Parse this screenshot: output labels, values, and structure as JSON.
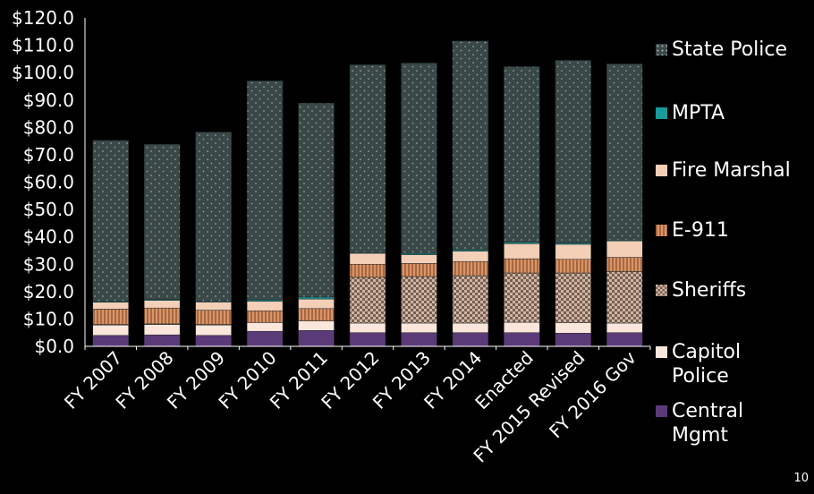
{
  "chart_data": {
    "type": "bar",
    "stacked": true,
    "categories": [
      "FY 2007",
      "FY 2008",
      "FY 2009",
      "FY 2010",
      "FY 2011",
      "FY 2012",
      "FY 2013",
      "FY 2014",
      "Enacted",
      "FY 2015 Revised",
      "FY 2016 Gov"
    ],
    "yticks": [
      "$0.0",
      "$10.0",
      "$20.0",
      "$30.0",
      "$40.0",
      "$50.0",
      "$60.0",
      "$70.0",
      "$80.0",
      "$90.0",
      "$100.0",
      "$110.0",
      "$120.0"
    ],
    "ylim": [
      0,
      120
    ],
    "series": [
      {
        "name": "Central Mgmt",
        "color": "#5b3a78",
        "pattern": "solid",
        "values": [
          4.0,
          4.2,
          4.0,
          5.5,
          5.8,
          5.0,
          5.0,
          5.0,
          5.0,
          4.8,
          5.0
        ]
      },
      {
        "name": "Capitol Police",
        "color": "#fbe6dc",
        "pattern": "solid",
        "values": [
          3.8,
          3.8,
          3.8,
          3.2,
          3.5,
          3.5,
          3.5,
          3.5,
          3.8,
          3.8,
          3.5
        ]
      },
      {
        "name": "Sheriffs",
        "color": "#b89a88",
        "pattern": "checker",
        "values": [
          0.2,
          0.2,
          0.2,
          0.0,
          0.0,
          16.7,
          17.0,
          17.3,
          18.0,
          18.2,
          18.8
        ]
      },
      {
        "name": "E-911",
        "color": "#c8845c",
        "pattern": "vstripe",
        "values": [
          5.6,
          5.8,
          5.2,
          4.3,
          4.5,
          4.8,
          4.8,
          5.2,
          5.2,
          5.0,
          5.2
        ]
      },
      {
        "name": "Fire Marshal",
        "color": "#f3cfb8",
        "pattern": "solid",
        "values": [
          2.5,
          2.8,
          3.0,
          3.5,
          3.5,
          4.0,
          3.2,
          3.8,
          5.5,
          5.5,
          6.0
        ]
      },
      {
        "name": "MPTA",
        "color": "#1a9a9a",
        "pattern": "solid",
        "values": [
          0.3,
          0.3,
          0.3,
          0.5,
          0.7,
          0.3,
          0.5,
          0.5,
          0.5,
          0.5,
          0.3
        ]
      },
      {
        "name": "State Police",
        "color": "#3a4848",
        "pattern": "dots",
        "values": [
          58.9,
          56.7,
          61.8,
          80.0,
          70.9,
          68.6,
          69.5,
          76.3,
          64.2,
          66.7,
          64.4
        ]
      }
    ],
    "legend_order": [
      "State Police",
      "MPTA",
      "Fire Marshal",
      "E-911",
      "Sheriffs",
      "Capitol Police",
      "Central Mgmt"
    ],
    "legend_position": "right"
  },
  "legend": {
    "items": [
      {
        "label": "State Police",
        "color": "#3a4848"
      },
      {
        "label": "MPTA",
        "color": "#1a9a9a"
      },
      {
        "label": "Fire Marshal",
        "color": "#f3cfb8"
      },
      {
        "label": "E-911",
        "color": "#c8845c"
      },
      {
        "label": "Sheriffs",
        "color": "#b89a88"
      },
      {
        "label": "Capitol Police",
        "color": "#fbe6dc"
      },
      {
        "label": "Central Mgmt",
        "color": "#5b3a78"
      }
    ]
  },
  "page_number": "10"
}
